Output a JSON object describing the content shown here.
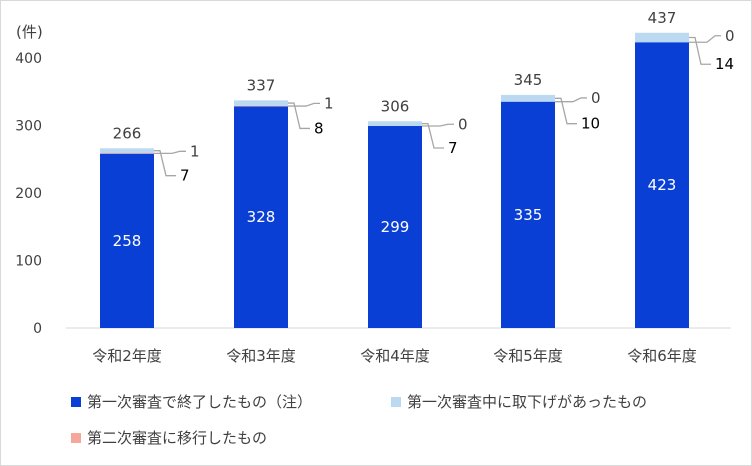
{
  "chart_data": {
    "type": "bar",
    "stacked": true,
    "unit_label": "(件)",
    "categories": [
      "令和2年度",
      "令和3年度",
      "令和4年度",
      "令和5年度",
      "令和6年度"
    ],
    "series": [
      {
        "name": "第一次審査で終了したもの（注）",
        "values": [
          258,
          328,
          299,
          335,
          423
        ],
        "color": "#0a3fd6"
      },
      {
        "name": "第二次審査に移行したもの",
        "values": [
          1,
          1,
          0,
          0,
          0
        ],
        "color": "#f4a79a"
      },
      {
        "name": "第一次審査中に取下げがあったもの",
        "values": [
          7,
          8,
          7,
          10,
          14
        ],
        "color": "#bcd9f2"
      }
    ],
    "totals": [
      266,
      337,
      306,
      345,
      437
    ],
    "ylim": [
      0,
      450
    ],
    "yticks": [
      0,
      100,
      200,
      300,
      400
    ],
    "grid": false,
    "legend_position": "bottom"
  }
}
